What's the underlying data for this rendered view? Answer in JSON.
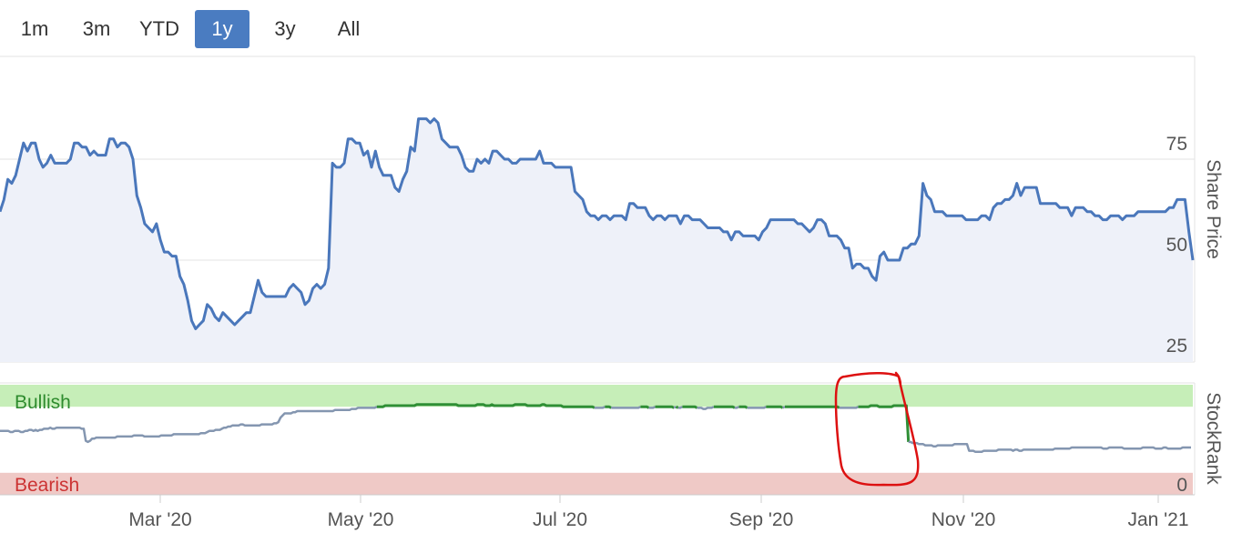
{
  "range_selector": {
    "buttons": [
      {
        "label": "1m",
        "active": false
      },
      {
        "label": "3m",
        "active": false
      },
      {
        "label": "YTD",
        "active": false
      },
      {
        "label": "1y",
        "active": true
      },
      {
        "label": "3y",
        "active": false
      },
      {
        "label": "All",
        "active": false
      }
    ],
    "active_color": "#4a7cc1"
  },
  "chart_data": [
    {
      "type": "area",
      "ylabel": "Share Price",
      "yticks": [
        25,
        50,
        75
      ],
      "ylim": [
        25,
        100
      ],
      "grid": true,
      "line_color": "#4a77bb",
      "fill_color": "#eef1f9",
      "series": [
        {
          "values": [
            62,
            65,
            70,
            69,
            71,
            75,
            79,
            77,
            79,
            79,
            75,
            73,
            74,
            76,
            74,
            74,
            74,
            74,
            75,
            79,
            79,
            78,
            78,
            76,
            77,
            76,
            76,
            76,
            80,
            80,
            78,
            79,
            79,
            78,
            75,
            66,
            63,
            59,
            58,
            57,
            59,
            55,
            52,
            52,
            51,
            51,
            46,
            44,
            40,
            35,
            33,
            34,
            35,
            39,
            38,
            36,
            35,
            37,
            36,
            35,
            34,
            35,
            36,
            37,
            37,
            41,
            45,
            42,
            41,
            41,
            41,
            41,
            41,
            41,
            43,
            44,
            43,
            42,
            39,
            40,
            43,
            44,
            43,
            44,
            48,
            74,
            73,
            73,
            74,
            80,
            80,
            79,
            79,
            76,
            77,
            73,
            77,
            73,
            71,
            71,
            71,
            68,
            67,
            70,
            72,
            78,
            77,
            85,
            85,
            85,
            84,
            85,
            84,
            80,
            79,
            78,
            78,
            78,
            76,
            73,
            72,
            72,
            75,
            74,
            75,
            74,
            77,
            77,
            76,
            75,
            75,
            74,
            74,
            75,
            75,
            75,
            75,
            75,
            77,
            74,
            74,
            74,
            73,
            73,
            73,
            73,
            73,
            67,
            66,
            65,
            62,
            61,
            61,
            60,
            61,
            61,
            60,
            61,
            61,
            61,
            60,
            64,
            64,
            63,
            63,
            63,
            61,
            60,
            61,
            61,
            60,
            61,
            61,
            61,
            59,
            61,
            61,
            60,
            60,
            60,
            59,
            58,
            58,
            58,
            58,
            57,
            57,
            55,
            57,
            57,
            56,
            56,
            56,
            56,
            55,
            57,
            58,
            60,
            60,
            60,
            60,
            60,
            60,
            60,
            59,
            59,
            58,
            57,
            58,
            60,
            60,
            59,
            56,
            56,
            56,
            55,
            53,
            53,
            48,
            49,
            49,
            48,
            48,
            46,
            45,
            51,
            52,
            50,
            50,
            50,
            50,
            53,
            53,
            54,
            54,
            56,
            69,
            66,
            65,
            62,
            62,
            62,
            61,
            61,
            61,
            61,
            61,
            60,
            60,
            60,
            60,
            61,
            61,
            60,
            63,
            64,
            64,
            65,
            65,
            66,
            69,
            66,
            68,
            68,
            68,
            68,
            64,
            64,
            64,
            64,
            64,
            63,
            63,
            63,
            61,
            63,
            63,
            63,
            62,
            62,
            61,
            61,
            60,
            60,
            61,
            61,
            61,
            60,
            61,
            61,
            61,
            62,
            62,
            62,
            62,
            62,
            62,
            62,
            62,
            63,
            63,
            65,
            65,
            65,
            57,
            50
          ]
        }
      ]
    },
    {
      "type": "line",
      "ylabel": "StockRank",
      "yticks": [
        0
      ],
      "ylim": [
        0,
        100
      ],
      "zones": [
        {
          "label": "Bullish",
          "from": 80,
          "to": 100,
          "color": "#c6eeb8",
          "text_color": "#2e8b2e"
        },
        {
          "label": "Bearish",
          "from": 0,
          "to": 20,
          "color": "#efc9c6",
          "text_color": "#cc3333"
        }
      ],
      "line_color": "#8496b0",
      "bullish_line_color": "#2f8f35",
      "series": [
        {
          "values": [
            58,
            58,
            58,
            58,
            58,
            57,
            57,
            58,
            58,
            58,
            57,
            57,
            58,
            58,
            59,
            59,
            58,
            59,
            58,
            59,
            59,
            60,
            60,
            60,
            61,
            60,
            60,
            61,
            61,
            61,
            61,
            61,
            61,
            61,
            61,
            61,
            61,
            61,
            61,
            60,
            60,
            49,
            48,
            49,
            51,
            51,
            52,
            52,
            52,
            52,
            52,
            52,
            52,
            52,
            52,
            52,
            53,
            53,
            53,
            53,
            53,
            53,
            53,
            53,
            54,
            54,
            54,
            54,
            54,
            53,
            53,
            53,
            53,
            53,
            53,
            53,
            53,
            54,
            54,
            54,
            54,
            54,
            54,
            55,
            55,
            55,
            55,
            55,
            55,
            55,
            55,
            55,
            55,
            55,
            55,
            55,
            56,
            56,
            56,
            57,
            58,
            58,
            58,
            59,
            59,
            59,
            60,
            61,
            61,
            62,
            62,
            63,
            63,
            63,
            63,
            64,
            64,
            63,
            63,
            63,
            63,
            63,
            63,
            63,
            63,
            64,
            64,
            64,
            64,
            64,
            64,
            65,
            65,
            66,
            70,
            72,
            74,
            74,
            74,
            74,
            75,
            75,
            76,
            76,
            76,
            76,
            76,
            76,
            76,
            76,
            76,
            76,
            76,
            76,
            76,
            76,
            76,
            76,
            76,
            76,
            77,
            77,
            77,
            77,
            77,
            77,
            77,
            77,
            78,
            78,
            78,
            79,
            79,
            79,
            79,
            79,
            79,
            79,
            79,
            79,
            80,
            80,
            80,
            80,
            81,
            81,
            81,
            81,
            81,
            81,
            81,
            81,
            81,
            81,
            81,
            81,
            81,
            81,
            81,
            82,
            82,
            82,
            82,
            82,
            82,
            82,
            82,
            82,
            82,
            82,
            82,
            82,
            82,
            82,
            82,
            82,
            82,
            82,
            82,
            81,
            81,
            81,
            81,
            81,
            81,
            81,
            81,
            81,
            82,
            82,
            82,
            82,
            81,
            81,
            81,
            82,
            81,
            81,
            81,
            81,
            81,
            81,
            81,
            81,
            81,
            81,
            82,
            82,
            82,
            82,
            82,
            82,
            81,
            81,
            81,
            81,
            81,
            81,
            81,
            82,
            82,
            81,
            81,
            81,
            81,
            81,
            81,
            81,
            81,
            80,
            80,
            80,
            80,
            80,
            80,
            80,
            80,
            80,
            80,
            80,
            80,
            80,
            80,
            80,
            79,
            79,
            79,
            79,
            79,
            80,
            80,
            80,
            79,
            79,
            79,
            79,
            79,
            79,
            79,
            79,
            79,
            79,
            79,
            79,
            79,
            79,
            80,
            80,
            80,
            80,
            79,
            79,
            79,
            80,
            80,
            80,
            80,
            80,
            80,
            80,
            80,
            80,
            79,
            80,
            79,
            79,
            80,
            80,
            80,
            80,
            80,
            80,
            80,
            79,
            79,
            79,
            78,
            78,
            79,
            79,
            79,
            80,
            80,
            80,
            80,
            80,
            80,
            80,
            80,
            80,
            80,
            79,
            79,
            80,
            80,
            80,
            80,
            79,
            79,
            79,
            79,
            79,
            79,
            79,
            79,
            79,
            80,
            80,
            80,
            80,
            80,
            80,
            80,
            80,
            79,
            80,
            80,
            80,
            80,
            80,
            80,
            80,
            80,
            80,
            80,
            80,
            80,
            80,
            80,
            80,
            80,
            80,
            80,
            80,
            80,
            80,
            80,
            80,
            80,
            80,
            80,
            79,
            79,
            79,
            79,
            79,
            79,
            79,
            79,
            79,
            80,
            80,
            80,
            80,
            80,
            80,
            81,
            81,
            81,
            81,
            80,
            80,
            80,
            80,
            80,
            80,
            80,
            81,
            81,
            81,
            81,
            81,
            81,
            81,
            48,
            48,
            47,
            47,
            47,
            46,
            46,
            46,
            45,
            45,
            45,
            45,
            44,
            44,
            45,
            45,
            45,
            45,
            45,
            45,
            45,
            45,
            46,
            46,
            46,
            46,
            46,
            46,
            46,
            40,
            40,
            40,
            39,
            39,
            39,
            39,
            40,
            40,
            40,
            40,
            40,
            40,
            40,
            41,
            41,
            41,
            41,
            41,
            41,
            41,
            40,
            41,
            41,
            40,
            40,
            41,
            41,
            41,
            41,
            41,
            41,
            41,
            41,
            41,
            41,
            41,
            41,
            41,
            41,
            41,
            42,
            42,
            42,
            42,
            42,
            42,
            42,
            42,
            43,
            43,
            43,
            43,
            43,
            43,
            43,
            43,
            43,
            43,
            43,
            43,
            43,
            43,
            43,
            42,
            42,
            42,
            43,
            43,
            43,
            43,
            43,
            43,
            43,
            42,
            42,
            42,
            42,
            42,
            42,
            42,
            42,
            42,
            43,
            43,
            43,
            43,
            43,
            43,
            42,
            42,
            42,
            42,
            43,
            43,
            42,
            42,
            42,
            42,
            42,
            42,
            42,
            43,
            43,
            43,
            43,
            43
          ]
        }
      ]
    }
  ],
  "x_axis": {
    "ticks": [
      "Mar '20",
      "May '20",
      "Jul '20",
      "Sep '20",
      "Nov '20",
      "Jan '21"
    ]
  },
  "annotation": {
    "shape": "hand-drawn circle",
    "color": "#dd1111"
  }
}
